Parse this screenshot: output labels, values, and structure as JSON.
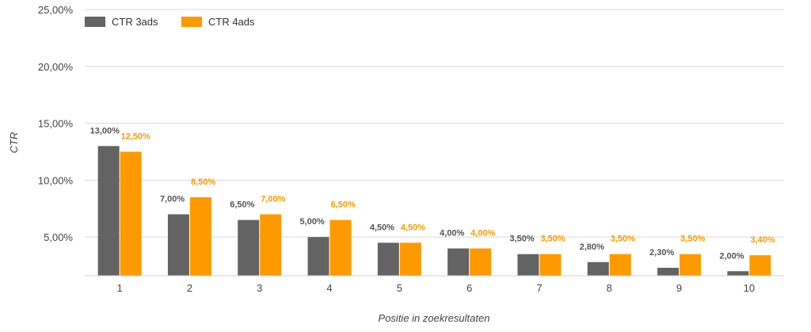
{
  "chart_data": {
    "type": "bar",
    "categories": [
      "1",
      "2",
      "3",
      "4",
      "5",
      "6",
      "7",
      "8",
      "9",
      "10"
    ],
    "series": [
      {
        "name": "CTR 3ads",
        "color": "#636363",
        "values": [
          13.0,
          7.0,
          6.5,
          5.0,
          4.5,
          4.0,
          3.5,
          2.8,
          2.3,
          2.0
        ],
        "labels": [
          "13,00%",
          "7,00%",
          "6,50%",
          "5,00%",
          "4,50%",
          "4,00%",
          "3,50%",
          "2,80%",
          "2,30%",
          "2,00%"
        ]
      },
      {
        "name": "CTR 4ads",
        "color": "#FF9900",
        "values": [
          12.5,
          8.5,
          7.0,
          6.5,
          4.5,
          4.0,
          3.5,
          3.5,
          3.5,
          3.4
        ],
        "labels": [
          "12,50%",
          "8,50%",
          "7,00%",
          "6,50%",
          "4,50%",
          "4,00%",
          "3,50%",
          "3,50%",
          "3,50%",
          "3,40%"
        ]
      }
    ],
    "ylabel": "CTR",
    "xlabel": "Positie in zoekresultaten",
    "ylim": [
      1.6,
      25
    ],
    "yticks": [
      5,
      10,
      15,
      20,
      25
    ],
    "ytick_labels": [
      "5,00%",
      "10,00%",
      "15,00%",
      "20,00%",
      "25,00%"
    ],
    "grid": true,
    "legend": "top-left"
  }
}
